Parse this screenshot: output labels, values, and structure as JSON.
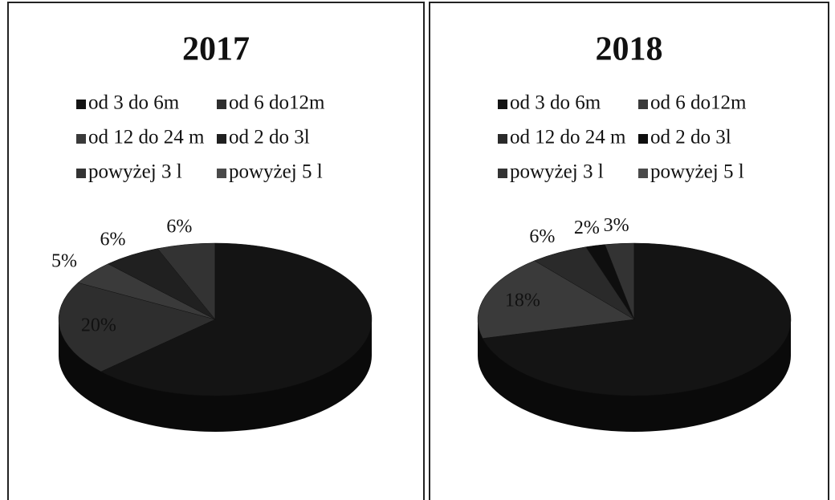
{
  "chart_data": [
    {
      "type": "pie",
      "title": "2017",
      "categories": [
        "od 3 do 6m",
        "od 6 do12m",
        "od 12 do 24 m",
        "od 2 do 3l",
        "powyżej 3 l",
        "powyżej 5 l"
      ],
      "values": [
        63,
        20,
        5,
        6,
        6,
        0
      ],
      "value_labels": [
        null,
        "20%",
        "5%",
        "6%",
        "6%",
        null
      ],
      "colors": [
        "#141414",
        "#2e2e2e",
        "#3a3a3a",
        "#202020",
        "#333333",
        "#4a4a4a"
      ]
    },
    {
      "type": "pie",
      "title": "2018",
      "categories": [
        "od 3 do 6m",
        "od 6 do12m",
        "od 12 do 24 m",
        "od 2 do 3l",
        "powyżej 3 l",
        "powyżej 5 l"
      ],
      "values": [
        71,
        18,
        6,
        2,
        3,
        0
      ],
      "value_labels": [
        null,
        "18%",
        "6%",
        "2%",
        "3%",
        null
      ],
      "colors": [
        "#141414",
        "#3a3a3a",
        "#2a2a2a",
        "#0e0e0e",
        "#333333",
        "#4a4a4a"
      ]
    }
  ]
}
